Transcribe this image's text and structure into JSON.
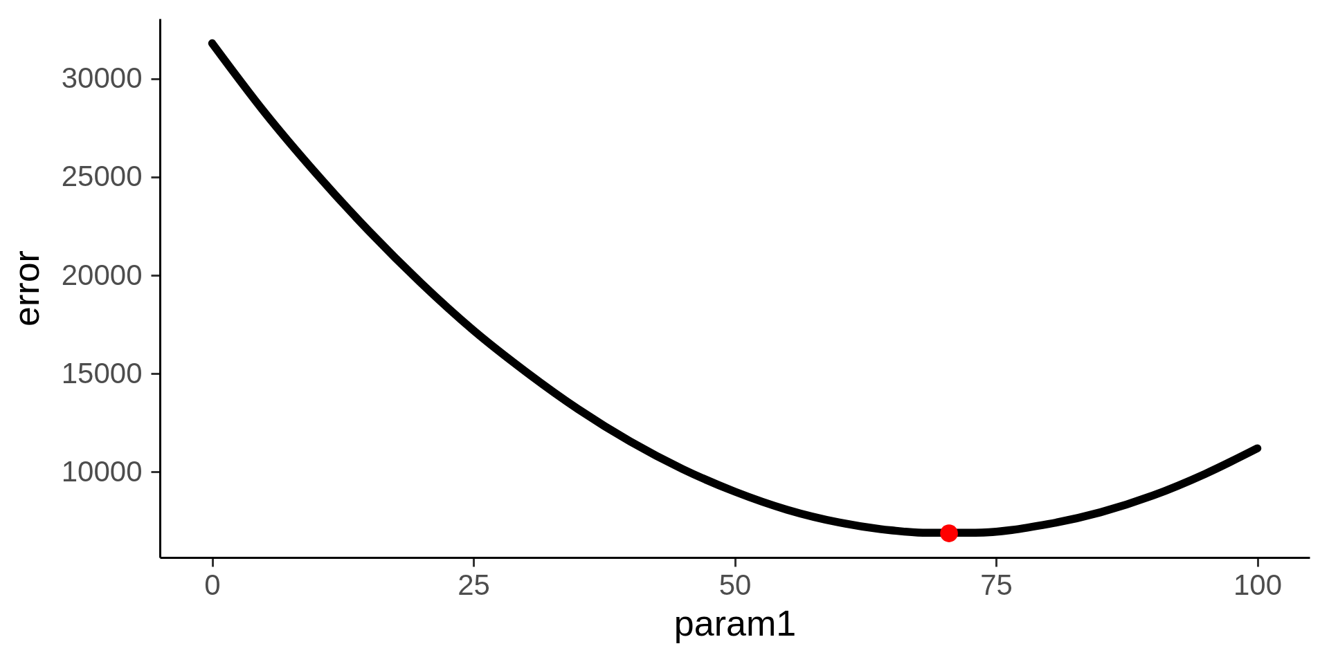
{
  "chart_data": {
    "type": "line",
    "xlabel": "param1",
    "ylabel": "error",
    "xlim": [
      -5,
      105
    ],
    "ylim": [
      5650,
      33050
    ],
    "xticks": [
      0,
      25,
      50,
      75,
      100
    ],
    "yticks": [
      10000,
      15000,
      20000,
      25000,
      30000
    ],
    "grid": false,
    "marker": "none",
    "line_style": "solid",
    "series": [
      {
        "color": "#000000",
        "x": [
          0,
          5,
          10,
          15,
          20,
          25,
          30,
          35,
          40,
          45,
          50,
          55,
          60,
          65,
          68,
          73,
          80,
          85,
          90,
          95,
          100
        ],
        "values": [
          31800,
          28300,
          25150,
          22250,
          19600,
          17200,
          15100,
          13200,
          11550,
          10150,
          9000,
          8080,
          7430,
          7030,
          6910,
          6910,
          7350,
          7950,
          8800,
          9900,
          11200
        ]
      },
      {
        "type": "scatter",
        "color": "#ff0000",
        "marker": "circle",
        "x": [
          70.5
        ],
        "values": [
          6880
        ]
      }
    ]
  }
}
